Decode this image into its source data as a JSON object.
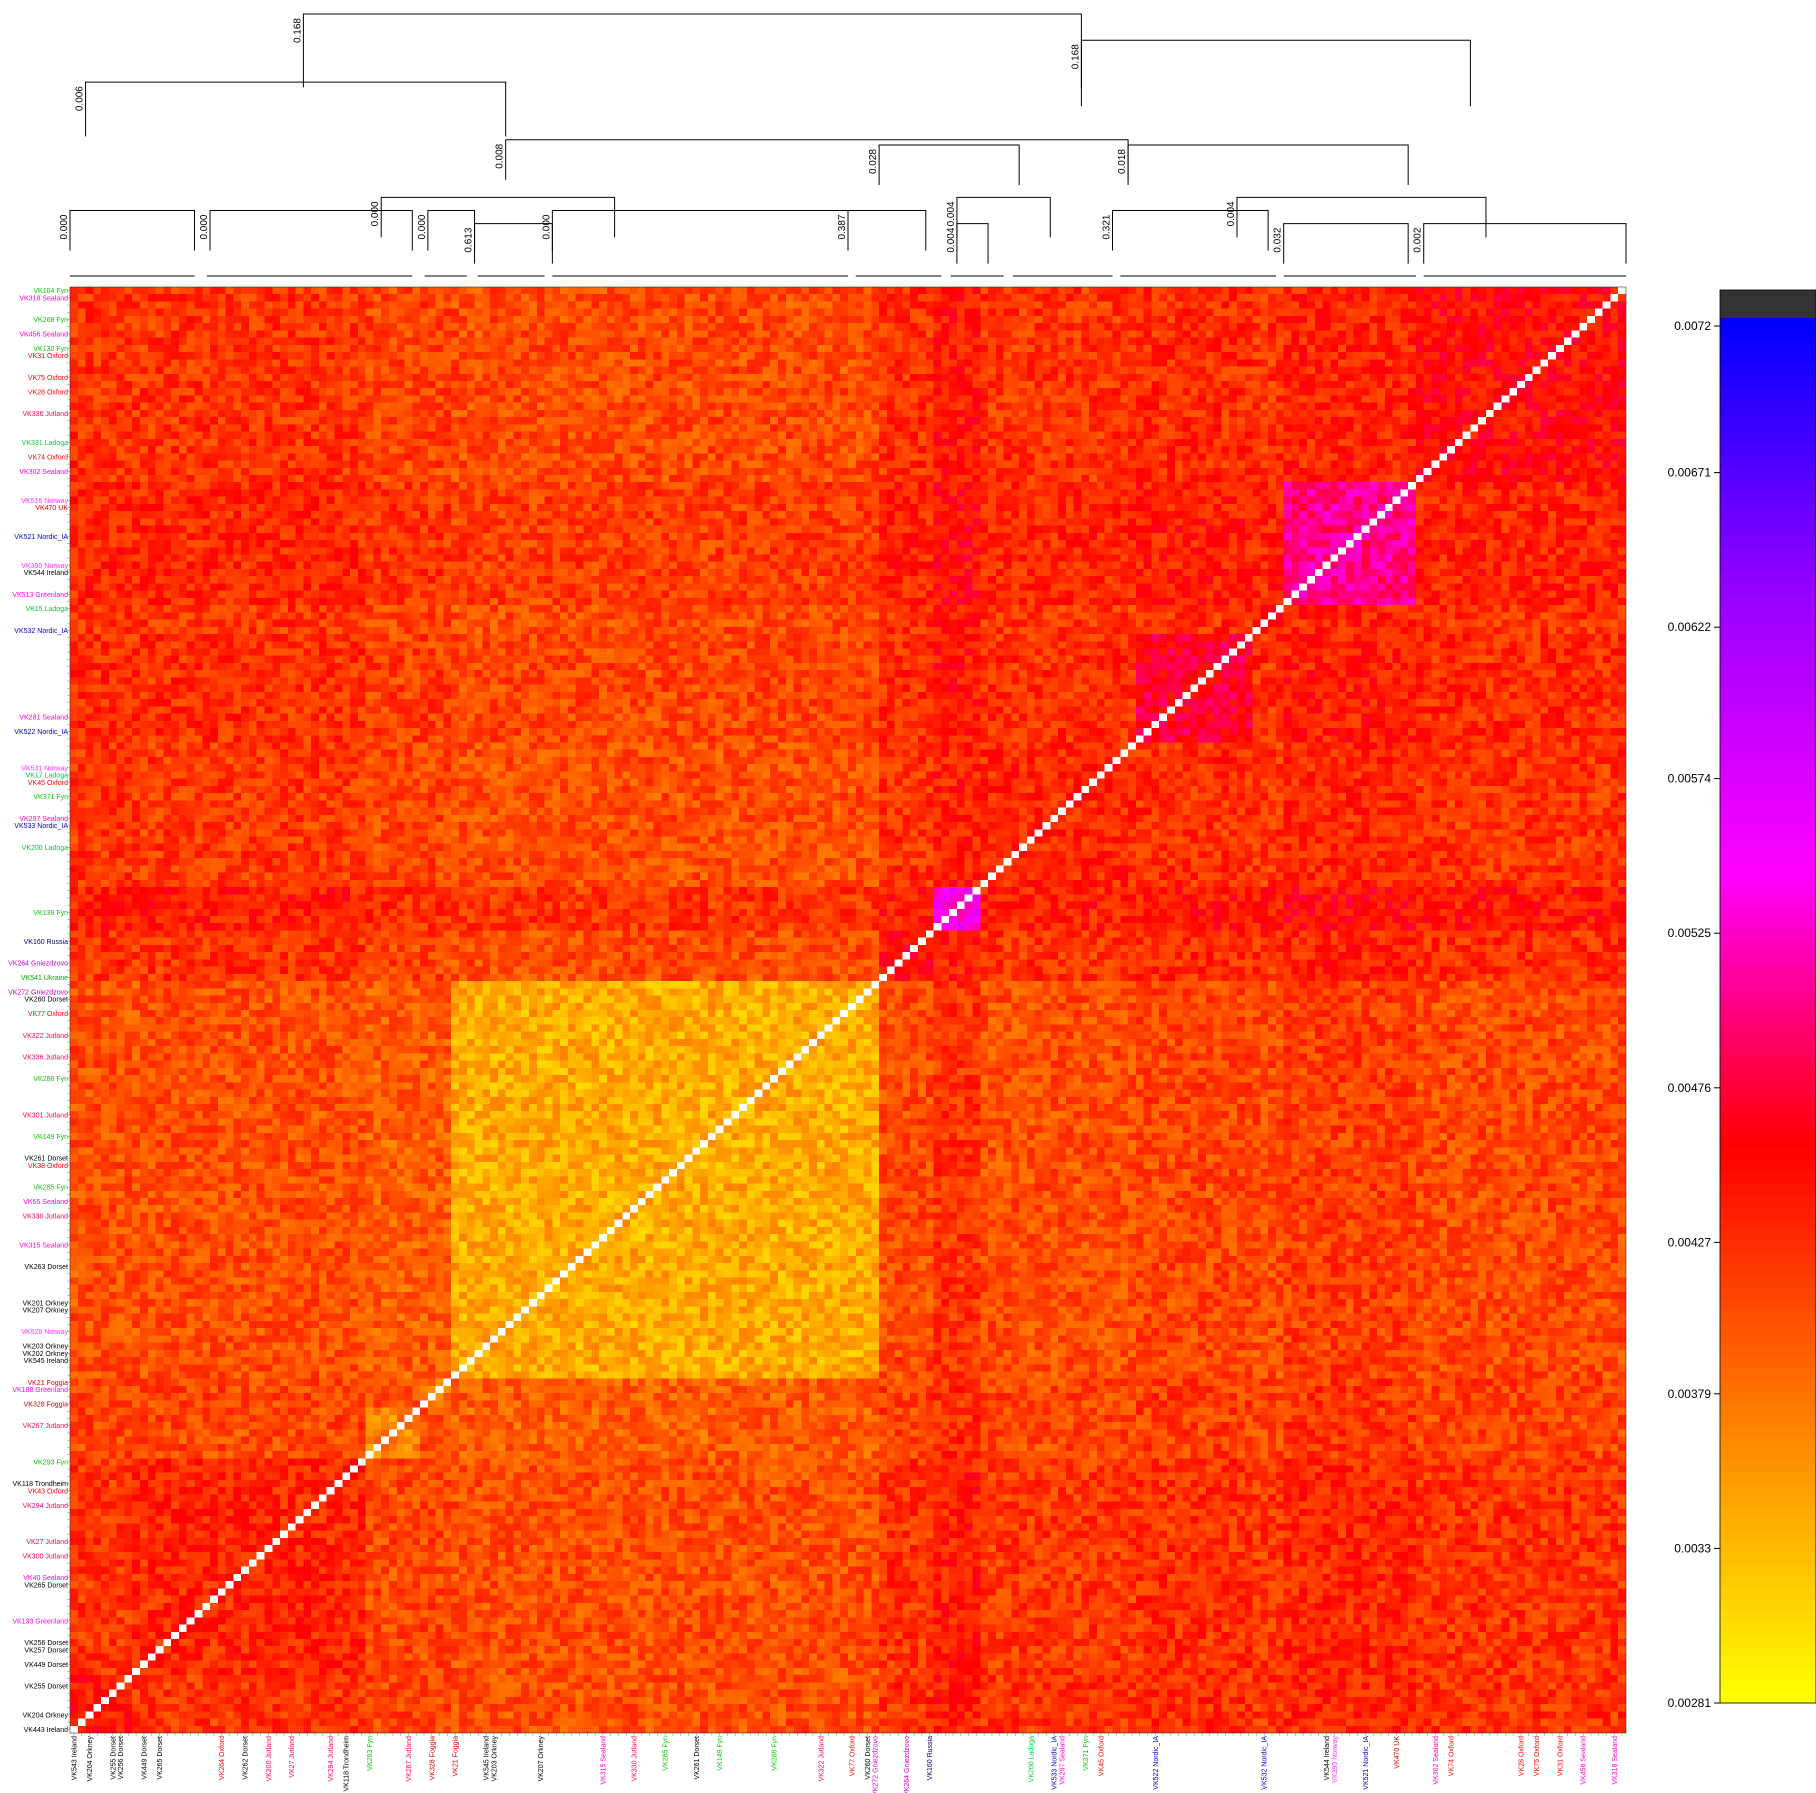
{
  "chart_data": {
    "type": "heatmap",
    "title": "",
    "xlabel": "",
    "ylabel": "",
    "n_cells": 200,
    "value_range": [
      0.00281,
      0.0072
    ],
    "colorbar": {
      "ticks": [
        "0.0072",
        "0.00671",
        "0.00622",
        "0.00574",
        "0.00525",
        "0.00476",
        "0.00427",
        "0.00379",
        "0.0033",
        "0.00281"
      ],
      "tick_values": [
        0.0072,
        0.00671,
        0.00622,
        0.00574,
        0.00525,
        0.00476,
        0.00427,
        0.00379,
        0.0033,
        0.00281
      ],
      "colors_low_to_high": [
        "#ffff00",
        "#ff8000",
        "#ff0000",
        "#ff00ff",
        "#9900ff",
        "#0000ff"
      ],
      "overflow_color": "#333333"
    },
    "label_colors": {
      "Fyn": "#00cc00",
      "Sealand": "#ff00cc",
      "Oxford": "#ff0000",
      "Jutland": "#ff0066",
      "Ladoga": "#00cc33",
      "Nordic_IA": "#0000cc",
      "Ireland": "#000000",
      "Norway": "#ff33ff",
      "Greenland": "#ff00ff",
      "Dorset": "#000000",
      "Orkney": "#000000",
      "Russia": "#000066",
      "Gniezdzovo": "#cc00cc",
      "Ukraine": "#00aa00",
      "UK": "#cc0000",
      "Foggia": "#cc0000",
      "Trondheim": "#000000",
      "other": "#00e5ee",
      "pale": "#ffff66"
    },
    "row_labels": [
      {
        "text": "VK104 Fyn",
        "cls": "Fyn",
        "pos": 0
      },
      {
        "text": "VK318 Sealand",
        "cls": "Sealand",
        "pos": 1
      },
      {
        "text": "VK268 Fyn",
        "cls": "Fyn",
        "pos": 4
      },
      {
        "text": "VK456 Sealand",
        "cls": "Sealand",
        "pos": 6
      },
      {
        "text": "VK130 Fyn",
        "cls": "Fyn",
        "pos": 8
      },
      {
        "text": "VK31 Oxford",
        "cls": "Oxford",
        "pos": 9
      },
      {
        "text": "VK75 Oxford",
        "cls": "Oxford",
        "pos": 12
      },
      {
        "text": "VK28 Oxford",
        "cls": "Oxford",
        "pos": 14
      },
      {
        "text": "VK336 Jutland",
        "cls": "Jutland",
        "pos": 17
      },
      {
        "text": "VK331 Ladoga",
        "cls": "Ladoga",
        "pos": 21
      },
      {
        "text": "VK74 Oxford",
        "cls": "Oxford",
        "pos": 23
      },
      {
        "text": "VK302 Sealand",
        "cls": "Sealand",
        "pos": 25
      },
      {
        "text": "VK516 Norway",
        "cls": "Norway",
        "pos": 29
      },
      {
        "text": "VK470 UK",
        "cls": "UK",
        "pos": 30
      },
      {
        "text": "VK521 Nordic_IA",
        "cls": "Nordic_IA",
        "pos": 34
      },
      {
        "text": "VK390 Norway",
        "cls": "Norway",
        "pos": 38
      },
      {
        "text": "VK544 Ireland",
        "cls": "Ireland",
        "pos": 39
      },
      {
        "text": "VK513 Greenland",
        "cls": "Greenland",
        "pos": 42
      },
      {
        "text": "VK15 Ladoga",
        "cls": "Ladoga",
        "pos": 44
      },
      {
        "text": "VK532 Nordic_IA",
        "cls": "Nordic_IA",
        "pos": 47
      },
      {
        "text": "VK281 Sealand",
        "cls": "Sealand",
        "pos": 59
      },
      {
        "text": "VK522 Nordic_IA",
        "cls": "Nordic_IA",
        "pos": 61
      },
      {
        "text": "VK531 Norway",
        "cls": "Norway",
        "pos": 66
      },
      {
        "text": "VK17 Ladoga",
        "cls": "Ladoga",
        "pos": 67
      },
      {
        "text": "VK45 Oxford",
        "cls": "Oxford",
        "pos": 68
      },
      {
        "text": "VK371 Fyn",
        "cls": "Fyn",
        "pos": 70
      },
      {
        "text": "VK297 Sealand",
        "cls": "Sealand",
        "pos": 73
      },
      {
        "text": "VK533 Nordic_IA",
        "cls": "Nordic_IA",
        "pos": 74
      },
      {
        "text": "VK200 Ladoga",
        "cls": "Ladoga",
        "pos": 77
      },
      {
        "text": "VK139 Fyn",
        "cls": "Fyn",
        "pos": 86
      },
      {
        "text": "VK160 Russia",
        "cls": "Russia",
        "pos": 90
      },
      {
        "text": "VK264 Gniezdzovo",
        "cls": "Gniezdzovo",
        "pos": 93
      },
      {
        "text": "VK541 Ukraine",
        "cls": "Ukraine",
        "pos": 95
      },
      {
        "text": "VK272 Gniezdzovo",
        "cls": "Gniezdzovo",
        "pos": 97
      },
      {
        "text": "VK260 Dorset",
        "cls": "Dorset",
        "pos": 98
      },
      {
        "text": "VK77 Oxford",
        "cls": "Oxford",
        "pos": 100
      },
      {
        "text": "VK322 Jutland",
        "cls": "Jutland",
        "pos": 103
      },
      {
        "text": "VK336 Jutland",
        "cls": "Jutland",
        "pos": 106
      },
      {
        "text": "VK286 Fyn",
        "cls": "Fyn",
        "pos": 109
      },
      {
        "text": "VK301 Jutland",
        "cls": "Jutland",
        "pos": 114
      },
      {
        "text": "VK149 Fyn",
        "cls": "Fyn",
        "pos": 117
      },
      {
        "text": "VK261 Dorset",
        "cls": "Dorset",
        "pos": 120
      },
      {
        "text": "VK38 Oxford",
        "cls": "Oxford",
        "pos": 121
      },
      {
        "text": "VK285 Fyn",
        "cls": "Fyn",
        "pos": 124
      },
      {
        "text": "VK65 Sealand",
        "cls": "Sealand",
        "pos": 126
      },
      {
        "text": "VK330 Jutland",
        "cls": "Jutland",
        "pos": 128
      },
      {
        "text": "VK315 Sealand",
        "cls": "Sealand",
        "pos": 132
      },
      {
        "text": "VK263 Dorset",
        "cls": "Dorset",
        "pos": 135
      },
      {
        "text": "VK201 Orkney",
        "cls": "Orkney",
        "pos": 140
      },
      {
        "text": "VK207 Orkney",
        "cls": "Orkney",
        "pos": 141
      },
      {
        "text": "VK528 Norway",
        "cls": "Norway",
        "pos": 144
      },
      {
        "text": "VK203 Orkney",
        "cls": "Orkney",
        "pos": 146
      },
      {
        "text": "VK202 Orkney",
        "cls": "Orkney",
        "pos": 147
      },
      {
        "text": "VK545 Ireland",
        "cls": "Ireland",
        "pos": 148
      },
      {
        "text": "VK21 Foggia",
        "cls": "Foggia",
        "pos": 151
      },
      {
        "text": "VK188 Greenland",
        "cls": "Greenland",
        "pos": 152
      },
      {
        "text": "VK328 Foggia",
        "cls": "Foggia",
        "pos": 154
      },
      {
        "text": "VK267 Jutland",
        "cls": "Jutland",
        "pos": 157
      },
      {
        "text": "VK293 Fyn",
        "cls": "Fyn",
        "pos": 162
      },
      {
        "text": "VK118 Trondheim",
        "cls": "Trondheim",
        "pos": 165
      },
      {
        "text": "VK43 Oxford",
        "cls": "Oxford",
        "pos": 166
      },
      {
        "text": "VK294 Jutland",
        "cls": "Jutland",
        "pos": 168
      },
      {
        "text": "VK27 Jutland",
        "cls": "Jutland",
        "pos": 173
      },
      {
        "text": "VK300 Jutland",
        "cls": "Jutland",
        "pos": 175
      },
      {
        "text": "VK40 Sealand",
        "cls": "Sealand",
        "pos": 178
      },
      {
        "text": "VK265 Dorset",
        "cls": "Dorset",
        "pos": 179
      },
      {
        "text": "VK193 Greenland",
        "cls": "Greenland",
        "pos": 184
      },
      {
        "text": "VK256 Dorset",
        "cls": "Dorset",
        "pos": 187
      },
      {
        "text": "VK257 Dorset",
        "cls": "Dorset",
        "pos": 188
      },
      {
        "text": "VK449 Dorset",
        "cls": "Dorset",
        "pos": 190
      },
      {
        "text": "VK255 Dorset",
        "cls": "Dorset",
        "pos": 193
      },
      {
        "text": "VK204 Orkney",
        "cls": "Orkney",
        "pos": 197
      },
      {
        "text": "VK443 Ireland",
        "cls": "Ireland",
        "pos": 199
      }
    ],
    "col_labels": [
      {
        "text": "VK543 Ireland",
        "cls": "Ireland",
        "pos": 0
      },
      {
        "text": "VK204 Orkney",
        "cls": "Orkney",
        "pos": 2
      },
      {
        "text": "VK255 Dorset",
        "cls": "Dorset",
        "pos": 5
      },
      {
        "text": "VK256 Dorset",
        "cls": "Dorset",
        "pos": 6
      },
      {
        "text": "VK449 Dorset",
        "cls": "Dorset",
        "pos": 9
      },
      {
        "text": "VK265 Dorset",
        "cls": "Dorset",
        "pos": 11
      },
      {
        "text": "VK264 Oxford",
        "cls": "Oxford",
        "pos": 19
      },
      {
        "text": "VK262 Dorset",
        "cls": "Dorset",
        "pos": 22
      },
      {
        "text": "VK300 Jutland",
        "cls": "Jutland",
        "pos": 25
      },
      {
        "text": "VK27 Jutland",
        "cls": "Jutland",
        "pos": 28
      },
      {
        "text": "VK294 Jutland",
        "cls": "Jutland",
        "pos": 33
      },
      {
        "text": "VK118 Trondheim",
        "cls": "Trondheim",
        "pos": 35
      },
      {
        "text": "VK293 Fyn",
        "cls": "Fyn",
        "pos": 38
      },
      {
        "text": "VK267 Jutland",
        "cls": "Jutland",
        "pos": 43
      },
      {
        "text": "VK328 Foggia",
        "cls": "Foggia",
        "pos": 46
      },
      {
        "text": "VK21 Foggia",
        "cls": "Foggia",
        "pos": 49
      },
      {
        "text": "VK545 Ireland",
        "cls": "Ireland",
        "pos": 53
      },
      {
        "text": "VK203 Orkney",
        "cls": "Orkney",
        "pos": 54
      },
      {
        "text": "VK207 Orkney",
        "cls": "Orkney",
        "pos": 60
      },
      {
        "text": "VK315 Sealand",
        "cls": "Sealand",
        "pos": 68
      },
      {
        "text": "VK330 Jutland",
        "cls": "Jutland",
        "pos": 72
      },
      {
        "text": "VK285 Fyn",
        "cls": "Fyn",
        "pos": 76
      },
      {
        "text": "VK261 Dorset",
        "cls": "Dorset",
        "pos": 80
      },
      {
        "text": "VK149 Fyn",
        "cls": "Fyn",
        "pos": 83
      },
      {
        "text": "VK286 Fyn",
        "cls": "Fyn",
        "pos": 90
      },
      {
        "text": "VK322 Jutland",
        "cls": "Jutland",
        "pos": 96
      },
      {
        "text": "VK77 Oxford",
        "cls": "Oxford",
        "pos": 100
      },
      {
        "text": "VK260 Dorset",
        "cls": "Dorset",
        "pos": 102
      },
      {
        "text": "VK272 Gniezdzovo",
        "cls": "Gniezdzovo",
        "pos": 103
      },
      {
        "text": "VK264 Gniezdzovo",
        "cls": "Gniezdzovo",
        "pos": 107
      },
      {
        "text": "VK160 Russia",
        "cls": "Russia",
        "pos": 110
      },
      {
        "text": "VK200 Ladoga",
        "cls": "Ladoga",
        "pos": 123
      },
      {
        "text": "VK533 Nordic_IA",
        "cls": "Nordic_IA",
        "pos": 126
      },
      {
        "text": "VK297 Sealand",
        "cls": "Sealand",
        "pos": 127
      },
      {
        "text": "VK371 Fyn",
        "cls": "Fyn",
        "pos": 130
      },
      {
        "text": "VK45 Oxford",
        "cls": "Oxford",
        "pos": 132
      },
      {
        "text": "VK522 Nordic_IA",
        "cls": "Nordic_IA",
        "pos": 139
      },
      {
        "text": "VK532 Nordic_IA",
        "cls": "Nordic_IA",
        "pos": 153
      },
      {
        "text": "VK544 Ireland",
        "cls": "Ireland",
        "pos": 161
      },
      {
        "text": "VK390 Norway",
        "cls": "Norway",
        "pos": 162
      },
      {
        "text": "VK521 Nordic_IA",
        "cls": "Nordic_IA",
        "pos": 166
      },
      {
        "text": "VK470 UK",
        "cls": "UK",
        "pos": 170
      },
      {
        "text": "VK302 Sealand",
        "cls": "Sealand",
        "pos": 175
      },
      {
        "text": "VK74 Oxford",
        "cls": "Oxford",
        "pos": 177
      },
      {
        "text": "VK28 Oxford",
        "cls": "Oxford",
        "pos": 186
      },
      {
        "text": "VK75 Oxford",
        "cls": "Oxford",
        "pos": 188
      },
      {
        "text": "VK31 Oxford",
        "cls": "Oxford",
        "pos": 191
      },
      {
        "text": "VK456 Sealand",
        "cls": "Sealand",
        "pos": 194
      },
      {
        "text": "VK318 Sealand",
        "cls": "Sealand",
        "pos": 198
      }
    ],
    "dendrogram": {
      "nodes": [
        {
          "label": "0.168",
          "x1": 0.15,
          "x2": 0.65,
          "h": 1.0
        },
        {
          "label": "0.168",
          "x1": 0.65,
          "x2": 0.9,
          "h": 0.9
        },
        {
          "label": "0.006",
          "x1": 0.01,
          "x2": 0.28,
          "h": 0.74
        },
        {
          "label": "0.008",
          "x1": 0.28,
          "x2": 0.68,
          "h": 0.52
        },
        {
          "label": "0.028",
          "x1": 0.52,
          "x2": 0.61,
          "h": 0.5
        },
        {
          "label": "0.018",
          "x1": 0.68,
          "x2": 0.86,
          "h": 0.5
        },
        {
          "label": "0.000",
          "x1": 0.2,
          "x2": 0.35,
          "h": 0.3
        },
        {
          "label": "0.004",
          "x1": 0.57,
          "x2": 0.63,
          "h": 0.3
        },
        {
          "label": "0.004",
          "x1": 0.75,
          "x2": 0.91,
          "h": 0.3
        },
        {
          "label": "0.000",
          "x1": 0.0,
          "x2": 0.08,
          "h": 0.25
        },
        {
          "label": "0.000",
          "x1": 0.09,
          "x2": 0.22,
          "h": 0.25
        },
        {
          "label": "0.000",
          "x1": 0.23,
          "x2": 0.26,
          "h": 0.25
        },
        {
          "label": "0.613",
          "x1": 0.26,
          "x2": 0.31,
          "h": 0.2
        },
        {
          "label": "0.000",
          "x1": 0.31,
          "x2": 0.5,
          "h": 0.25
        },
        {
          "label": "0.387",
          "x1": 0.5,
          "x2": 0.55,
          "h": 0.25
        },
        {
          "label": "0.004",
          "x1": 0.57,
          "x2": 0.59,
          "h": 0.2
        },
        {
          "label": "0.321",
          "x1": 0.67,
          "x2": 0.77,
          "h": 0.25
        },
        {
          "label": "0.032",
          "x1": 0.78,
          "x2": 0.86,
          "h": 0.2
        },
        {
          "label": "0.002",
          "x1": 0.87,
          "x2": 1.0,
          "h": 0.2
        }
      ]
    },
    "blocks": [
      {
        "start": 0,
        "end": 8,
        "shift": 0.03
      },
      {
        "start": 8,
        "end": 38,
        "shift": 0.02
      },
      {
        "start": 38,
        "end": 45,
        "shift": -0.05
      },
      {
        "start": 45,
        "end": 49,
        "shift": -0.04
      },
      {
        "start": 49,
        "end": 104,
        "shift": -0.08
      },
      {
        "start": 104,
        "end": 111,
        "shift": 0.04
      },
      {
        "start": 111,
        "end": 117,
        "shift": 0.14
      },
      {
        "start": 117,
        "end": 137,
        "shift": 0.02
      },
      {
        "start": 137,
        "end": 152,
        "shift": 0.06
      },
      {
        "start": 152,
        "end": 156,
        "shift": 0.03
      },
      {
        "start": 156,
        "end": 173,
        "shift": 0.1
      },
      {
        "start": 173,
        "end": 200,
        "shift": 0.04
      }
    ]
  }
}
